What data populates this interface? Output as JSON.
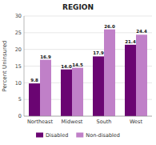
{
  "chart_data": {
    "type": "bar",
    "title": "REGION",
    "ylabel": "Percent Uninsured",
    "categories": [
      "Northeast",
      "Midwest",
      "South",
      "West"
    ],
    "series": [
      {
        "name": "Disabled",
        "color": "#6a0572",
        "values": [
          9.8,
          14.0,
          17.9,
          21.4
        ],
        "value_labels": [
          "9.8",
          "14.0",
          "17.9",
          "21.4"
        ]
      },
      {
        "name": "Non-disabled",
        "color": "#c080c8",
        "values": [
          16.9,
          14.5,
          26.0,
          24.4
        ],
        "value_labels": [
          "16.9",
          "14.5",
          "26.0",
          "24.4"
        ]
      }
    ],
    "ylim": [
      0,
      30
    ],
    "yticks": [
      0,
      5,
      10,
      15,
      20,
      25,
      30
    ],
    "grid": true,
    "legend": "bottom",
    "data_labels": true
  }
}
